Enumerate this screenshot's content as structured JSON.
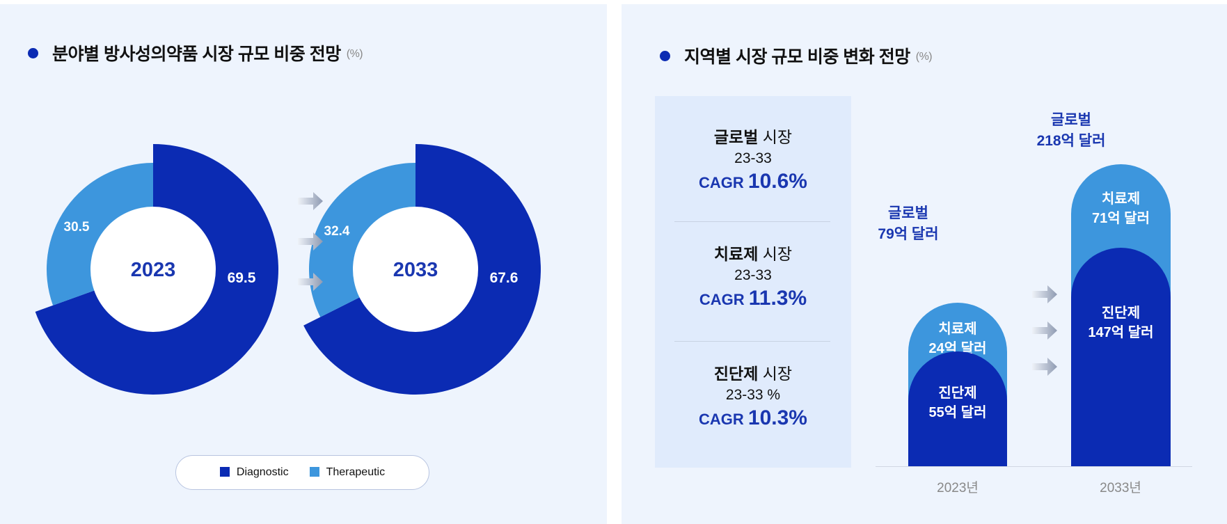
{
  "left": {
    "title": "분야별 방사성의약품 시장 규모 비중 전망",
    "unit": "(%)",
    "legend": [
      "Diagnostic",
      "Therapeutic"
    ]
  },
  "right": {
    "title": "지역별 시장 규모 비중 변화 전망",
    "unit": "(%)",
    "cagr": [
      {
        "bold": "글로벌",
        "rest": " 시장",
        "period": "23-33",
        "label": "CAGR ",
        "value": "10.6%"
      },
      {
        "bold": "치료제",
        "rest": " 시장",
        "period": "23-33",
        "label": "CAGR ",
        "value": "11.3%"
      },
      {
        "bold": "진단제",
        "rest": " 시장",
        "period": "23-33 %",
        "label": "CAGR ",
        "value": "10.3%"
      }
    ],
    "bars": [
      {
        "year": "2023년",
        "total_name": "글로벌",
        "total": "79억 달러",
        "ther_name": "치료제",
        "ther": "24억 달러",
        "diag_name": "진단제",
        "diag": "55억 달러"
      },
      {
        "year": "2033년",
        "total_name": "글로벌",
        "total": "218억 달러",
        "ther_name": "치료제",
        "ther": "71억 달러",
        "diag_name": "진단제",
        "diag": "147억 달러"
      }
    ]
  },
  "colors": {
    "diagnostic": "#0b2bb3",
    "therapeutic": "#3d96dd",
    "accent_text": "#1a37b0"
  },
  "chart_data": [
    {
      "type": "pie",
      "title": "2023",
      "labels": [
        "Diagnostic",
        "Therapeutic"
      ],
      "values": [
        69.5,
        30.5
      ],
      "value_labels": [
        "69.5",
        "30.5"
      ]
    },
    {
      "type": "pie",
      "title": "2033",
      "labels": [
        "Diagnostic",
        "Therapeutic"
      ],
      "values": [
        67.6,
        32.4
      ],
      "value_labels": [
        "67.6",
        "32.4"
      ]
    },
    {
      "type": "bar",
      "stacked": true,
      "categories": [
        "2023년",
        "2033년"
      ],
      "series": [
        {
          "name": "진단제",
          "values": [
            55,
            147
          ]
        },
        {
          "name": "치료제",
          "values": [
            24,
            71
          ]
        }
      ],
      "totals": [
        79,
        218
      ],
      "unit": "억 달러"
    }
  ]
}
